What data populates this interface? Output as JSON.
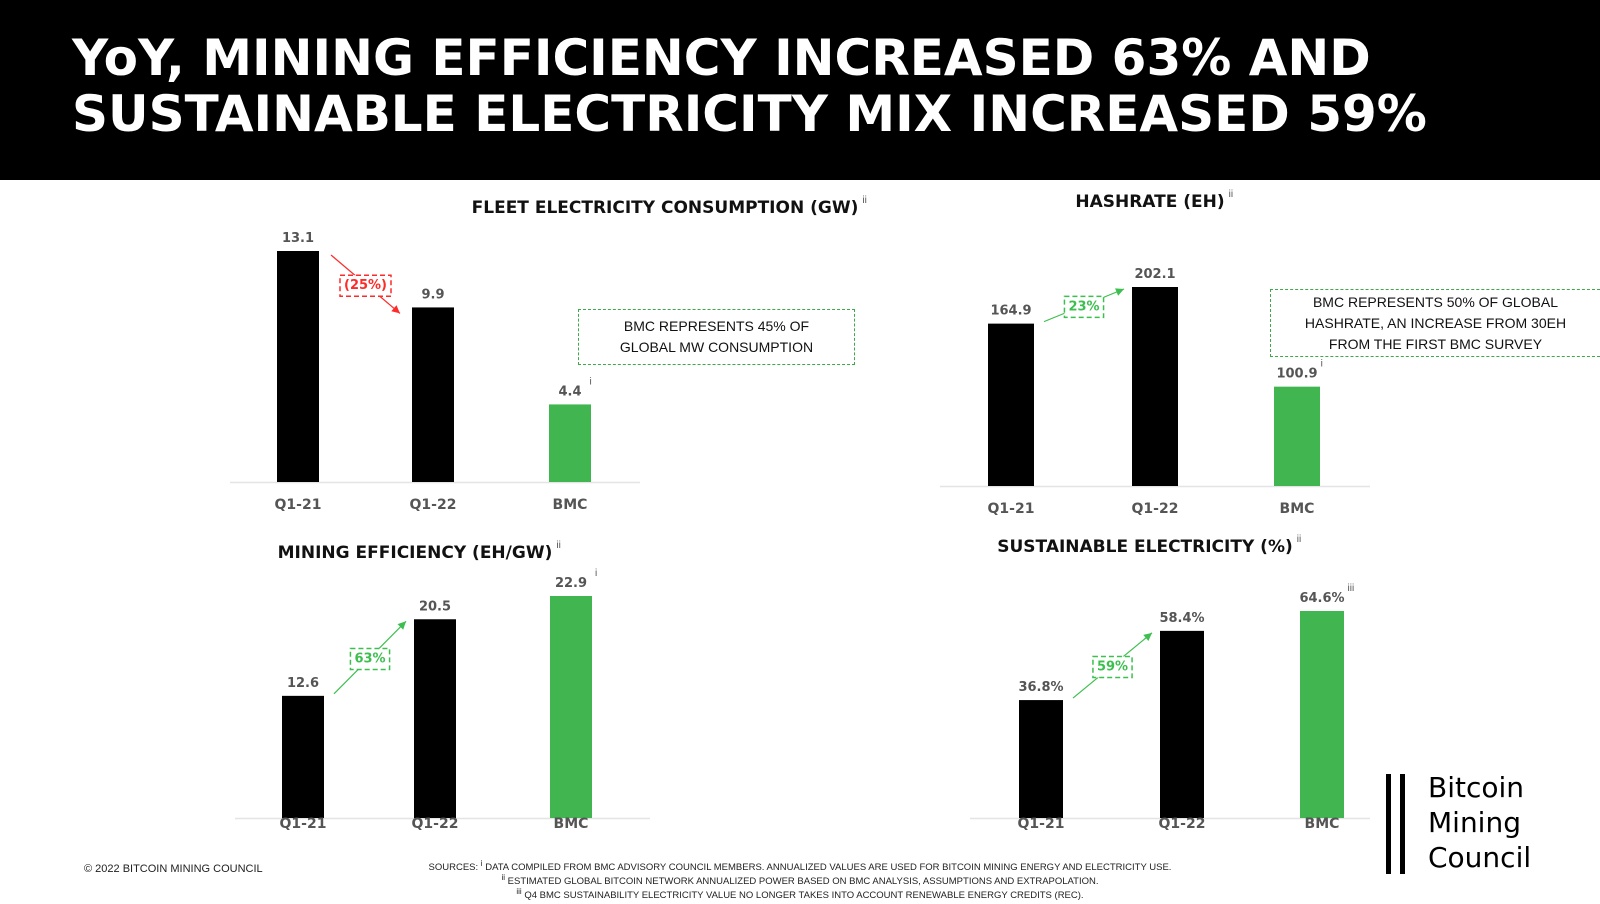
{
  "header": {
    "title_line1": "YoY, MINING EFFICIENCY INCREASED 63% AND",
    "title_line2": "SUSTAINABLE ELECTRICITY MIX INCREASED 59%"
  },
  "colors": {
    "bar_dark": "#000000",
    "bar_bmc": "#41b650",
    "increase": "#3dbf4f",
    "decrease": "#ff2a2a",
    "axis": "#e4e4e4"
  },
  "chart_data": [
    {
      "id": "fleet",
      "type": "bar",
      "title": "FLEET ELECTRICITY CONSUMPTION (GW)",
      "title_footnote": "ii",
      "categories": [
        "Q1-21",
        "Q1-22",
        "BMC"
      ],
      "values": [
        13.1,
        9.9,
        4.4
      ],
      "value_labels": [
        "13.1",
        "9.9",
        "4.4"
      ],
      "value_footnotes": [
        "",
        "",
        "i"
      ],
      "change": {
        "label": "(25%)",
        "direction": "decrease"
      },
      "note": "BMC REPRESENTS 45% OF GLOBAL MW CONSUMPTION",
      "ylim": [
        0,
        13.1
      ]
    },
    {
      "id": "hashrate",
      "type": "bar",
      "title": "HASHRATE (EH)",
      "title_footnote": "ii",
      "categories": [
        "Q1-21",
        "Q1-22",
        "BMC"
      ],
      "values": [
        164.9,
        202.1,
        100.9
      ],
      "value_labels": [
        "164.9",
        "202.1",
        "100.9"
      ],
      "value_footnotes": [
        "",
        "",
        "i"
      ],
      "change": {
        "label": "23%",
        "direction": "increase"
      },
      "note": "BMC REPRESENTS 50% OF GLOBAL HASHRATE, AN INCREASE FROM 30EH FROM THE FIRST BMC SURVEY",
      "ylim": [
        0,
        202.1
      ]
    },
    {
      "id": "efficiency",
      "type": "bar",
      "title": "MINING EFFICIENCY (EH/GW)",
      "title_footnote": "ii",
      "categories": [
        "Q1-21",
        "Q1-22",
        "BMC"
      ],
      "values": [
        12.6,
        20.5,
        22.9
      ],
      "value_labels": [
        "12.6",
        "20.5",
        "22.9"
      ],
      "value_footnotes": [
        "",
        "",
        "i"
      ],
      "change": {
        "label": "63%",
        "direction": "increase"
      },
      "ylim": [
        0,
        22.9
      ]
    },
    {
      "id": "sustainable",
      "type": "bar",
      "title": "SUSTAINABLE ELECTRICITY (%)",
      "title_footnote": "ii",
      "categories": [
        "Q1-21",
        "Q1-22",
        "BMC"
      ],
      "values": [
        36.8,
        58.4,
        64.6
      ],
      "value_labels": [
        "36.8%",
        "58.4%",
        "64.6%"
      ],
      "value_footnotes": [
        "",
        "",
        "iii"
      ],
      "change": {
        "label": "59%",
        "direction": "increase"
      },
      "ylim": [
        0,
        64.6
      ]
    }
  ],
  "footer": {
    "copyright": "© 2022 BITCOIN MINING COUNCIL",
    "sources_prefix": "SOURCES:",
    "sources": [
      {
        "mark": "i",
        "text": "DATA COMPILED FROM BMC ADVISORY COUNCIL MEMBERS. ANNUALIZED VALUES ARE USED FOR BITCOIN MINING ENERGY AND ELECTRICITY USE."
      },
      {
        "mark": "ii",
        "text": "ESTIMATED GLOBAL BITCOIN NETWORK ANNUALIZED POWER BASED ON BMC ANALYSIS, ASSUMPTIONS AND EXTRAPOLATION."
      },
      {
        "mark": "iii",
        "text": "Q4 BMC SUSTAINABILITY ELECTRICITY VALUE NO LONGER TAKES INTO ACCOUNT RENEWABLE ENERGY CREDITS (REC)."
      }
    ]
  },
  "logo": {
    "line1": "Bitcoin",
    "line2": "Mining",
    "line3": "Council"
  }
}
